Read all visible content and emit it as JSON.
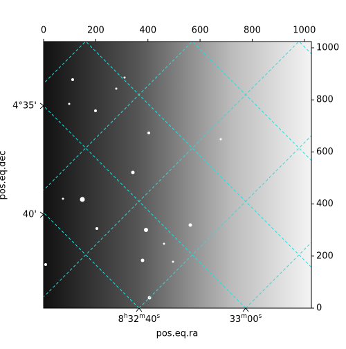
{
  "chart_data": {
    "type": "image",
    "xlabel": "pos.eq.ra",
    "ylabel": "pos.eq.dec",
    "xlim": [
      0,
      1027
    ],
    "ylim": [
      0,
      1024
    ],
    "xticks": [
      0,
      200,
      400,
      600,
      800,
      1000
    ],
    "yticks": [
      0,
      200,
      400,
      600,
      800,
      1000
    ],
    "ra_ticks": [
      {
        "value": 366,
        "label": "8h32m40s"
      },
      {
        "value": 775,
        "label": "33m00s"
      }
    ],
    "dec_ticks": [
      {
        "value": 777,
        "label": "4°35'"
      },
      {
        "value": 359,
        "label": "40'"
      }
    ],
    "grid_color": "#22e0e0"
  }
}
